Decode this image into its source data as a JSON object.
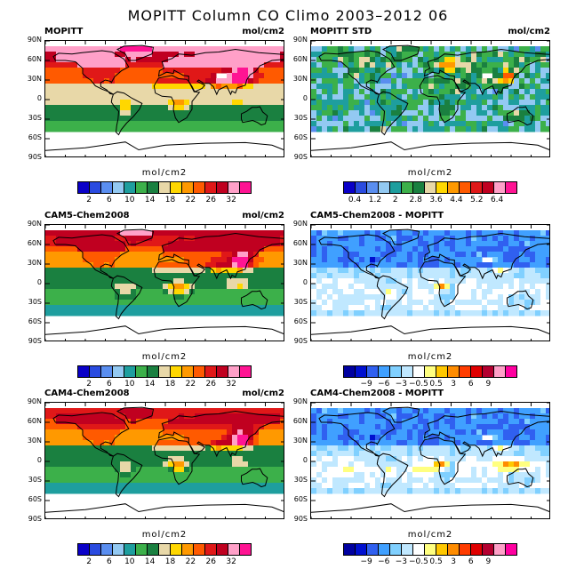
{
  "figure_title": "MOPITT Column CO Climo 2003–2012 06",
  "lat_labels": [
    "90N",
    "60N",
    "30N",
    "0",
    "30S",
    "60S",
    "90S"
  ],
  "palettes": {
    "abs": [
      "#0a00c8",
      "#2a4be0",
      "#5a8ef0",
      "#93c9f2",
      "#1e9e9e",
      "#3cb04a",
      "#1a8040",
      "#e8d8a8",
      "#ffd700",
      "#ff9900",
      "#ff5a00",
      "#e01818",
      "#c00020",
      "#ffa0c8",
      "#ff1493"
    ],
    "std": [
      "#0a00c8",
      "#2a4be0",
      "#5a8ef0",
      "#93c9f2",
      "#1e9e9e",
      "#3cb04a",
      "#1a8040",
      "#e8d8a8",
      "#ffd700",
      "#ff9900",
      "#ff5a00",
      "#e01818",
      "#c00020",
      "#ffa0c8",
      "#ff1493"
    ],
    "diff": [
      "#0000a0",
      "#0010d0",
      "#3060f0",
      "#40a0ff",
      "#80d0ff",
      "#c0e8ff",
      "#ffffff",
      "#ffff80",
      "#ffc800",
      "#ff8c00",
      "#ff3c00",
      "#e00000",
      "#b40030",
      "#ffa0c8",
      "#ff00a0"
    ]
  },
  "chart_data": [
    {
      "type": "heatmap",
      "id": "mopitt",
      "left_title": "MOPITT",
      "right_title": "mol/cm2",
      "units": "mol/cm2",
      "colorbar_labels": [
        "2",
        "6",
        "10",
        "14",
        "18",
        "22",
        "26",
        "32"
      ],
      "label_start_bin": 1,
      "palette": "abs",
      "pattern": "abs",
      "missing_south_of": -50,
      "noise": 0
    },
    {
      "type": "heatmap",
      "id": "mopitt-std",
      "left_title": "MOPITT STD",
      "right_title": "mol/cm2",
      "units": "mol/cm2",
      "colorbar_labels": [
        "0.4",
        "1.2",
        "2",
        "2.8",
        "3.6",
        "4.4",
        "5.2",
        "6.4"
      ],
      "label_start_bin": 1,
      "palette": "std",
      "pattern": "std",
      "missing_south_of": -50,
      "noise": 1
    },
    {
      "type": "heatmap",
      "id": "cam5",
      "left_title": "CAM5-Chem2008",
      "right_title": "mol/cm2",
      "units": "mol/cm2",
      "colorbar_labels": [
        "2",
        "6",
        "10",
        "14",
        "18",
        "22",
        "26",
        "32"
      ],
      "label_start_bin": 1,
      "palette": "abs",
      "pattern": "cam5",
      "missing_south_of": -50,
      "noise": 0
    },
    {
      "type": "heatmap",
      "id": "cam5-diff",
      "left_title": "CAM5-Chem2008 - MOPITT",
      "right_title": "",
      "units": "mol/cm2",
      "colorbar_labels": [
        "−9",
        "−6",
        "−3",
        "−0.5",
        "0.5",
        "3",
        "6",
        "9"
      ],
      "label_start_bin": 2,
      "palette": "diff",
      "pattern": "diff5",
      "missing_south_of": -50,
      "noise": 0.5
    },
    {
      "type": "heatmap",
      "id": "cam4",
      "left_title": "CAM4-Chem2008",
      "right_title": "mol/cm2",
      "units": "mol/cm2",
      "colorbar_labels": [
        "2",
        "6",
        "10",
        "14",
        "18",
        "22",
        "26",
        "32"
      ],
      "label_start_bin": 1,
      "palette": "abs",
      "pattern": "cam4",
      "missing_south_of": -50,
      "noise": 0
    },
    {
      "type": "heatmap",
      "id": "cam4-diff",
      "left_title": "CAM4-Chem2008 - MOPITT",
      "right_title": "",
      "units": "mol/cm2",
      "colorbar_labels": [
        "−9",
        "−6",
        "−3",
        "−0.5",
        "0.5",
        "3",
        "6",
        "9"
      ],
      "label_start_bin": 2,
      "palette": "diff",
      "pattern": "diff4",
      "missing_south_of": -50,
      "noise": 0.5
    }
  ]
}
